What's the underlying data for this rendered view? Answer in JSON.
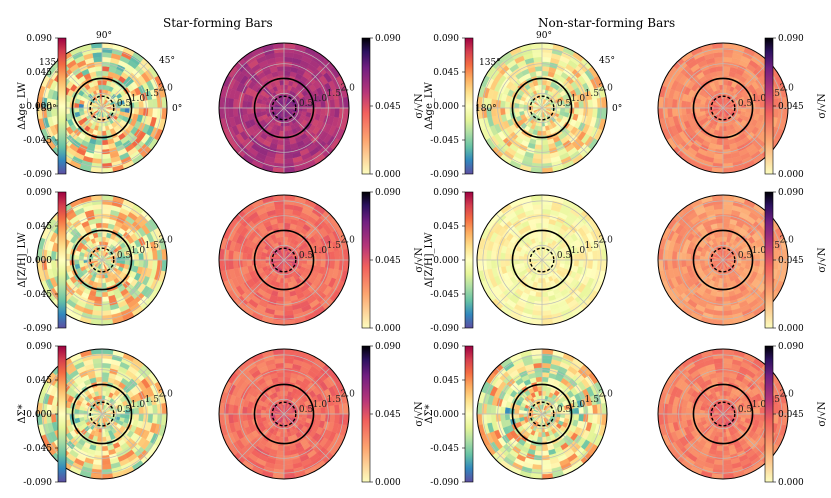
{
  "figure": {
    "titles": [
      "Star-forming Bars",
      "Non-star-forming Bars"
    ]
  },
  "chart_data": {
    "type": "heatmap",
    "projection": "polar",
    "column_groups": [
      "Star-forming Bars",
      "Non-star-forming Bars"
    ],
    "rows": [
      {
        "quantity": "ΔAge_LW",
        "ylabel": "ΔAge_LW"
      },
      {
        "quantity": "Δ[Z/H]_LW",
        "ylabel": "Δ[Z/H]_LW"
      },
      {
        "quantity": "ΔΣ*",
        "ylabel": "ΔΣ*"
      }
    ],
    "panel_types": [
      "difference map (spectral)",
      "uncertainty σ/√N (magma reversed)"
    ],
    "residual_colorbar": {
      "ticks": [
        "0.090",
        "0.045",
        "0.000",
        "-0.045",
        "-0.090"
      ],
      "range": [
        -0.09,
        0.09
      ]
    },
    "sigma_colorbar": {
      "label": "σ/√N",
      "ticks": [
        "0.090",
        "0.045",
        "0.000"
      ],
      "range": [
        0,
        0.09
      ]
    },
    "angle_labels": [
      "90°",
      "45°",
      "0°",
      "135°",
      "180°"
    ],
    "radial_labels": [
      "0.5",
      "1.0",
      "1.5",
      "2.0"
    ],
    "radial_range": [
      0,
      2.2
    ],
    "reference_circles": {
      "solid": 1.0,
      "dashed": 0.4
    },
    "panel_levels": {
      "sf_residual_age": 0.35,
      "sf_sigma_age": 0.62,
      "nsf_residual_age": 0.25,
      "nsf_sigma_age": 0.32,
      "sf_residual_met": 0.3,
      "sf_sigma_met": 0.4,
      "nsf_residual_met": 0.1,
      "nsf_sigma_met": 0.28,
      "sf_residual_mass": 0.3,
      "sf_sigma_mass": 0.4,
      "nsf_residual_mass": 0.3,
      "nsf_sigma_mass": 0.35
    }
  }
}
